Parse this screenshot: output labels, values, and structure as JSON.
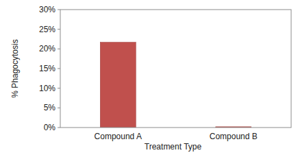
{
  "chart_data": {
    "type": "bar",
    "x_label": "Treatment Type",
    "y_label": "% Phagocytosis",
    "categories": [
      "Compound A",
      "Compound B"
    ],
    "values": [
      21.7,
      0.2
    ],
    "color": "#c0504d",
    "ylim": [
      0,
      30
    ],
    "yticks": [
      {
        "value": 0,
        "label": "0%"
      },
      {
        "value": 5,
        "label": "5%"
      },
      {
        "value": 10,
        "label": "10%"
      },
      {
        "value": 15,
        "label": "15%"
      },
      {
        "value": 20,
        "label": "20%"
      },
      {
        "value": 25,
        "label": "25%"
      },
      {
        "value": 30,
        "label": "30%"
      }
    ],
    "grid": false
  }
}
